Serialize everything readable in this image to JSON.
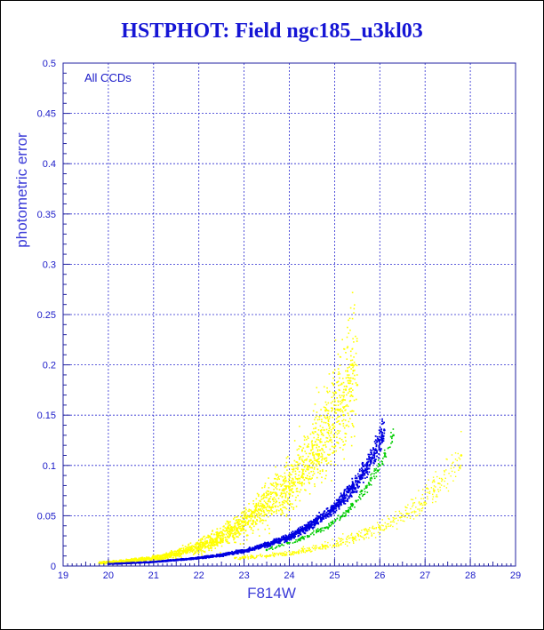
{
  "chart_data": {
    "type": "scatter",
    "title": "HSTPHOT: Field ngc185_u3kl03",
    "xlabel": "F814W",
    "ylabel": "photometric error",
    "annotation": "All CCDs",
    "xlim": [
      19,
      29
    ],
    "ylim": [
      0,
      0.5
    ],
    "x_ticks": [
      "19",
      "20",
      "21",
      "22",
      "23",
      "24",
      "25",
      "26",
      "27",
      "28",
      "29"
    ],
    "y_ticks": [
      "0",
      "0.05",
      "0.1",
      "0.15",
      "0.2",
      "0.25",
      "0.3",
      "0.35",
      "0.4",
      "0.45",
      "0.5"
    ],
    "grid": true,
    "colors": {
      "axis": "#2020a0",
      "grid": "#2a2ad0",
      "label": "#1a1ac8"
    },
    "series": [
      {
        "color": "#ffff00",
        "x": [
          19.8,
          20.3,
          20.8,
          21.2,
          21.6,
          22.0,
          22.4,
          22.8,
          23.2,
          23.6,
          24.0,
          24.3,
          24.6,
          24.9,
          25.2,
          25.5
        ],
        "y": [
          0.003,
          0.004,
          0.006,
          0.008,
          0.012,
          0.017,
          0.024,
          0.033,
          0.045,
          0.058,
          0.072,
          0.088,
          0.105,
          0.125,
          0.15,
          0.18
        ]
      },
      {
        "color": "#ffff00",
        "x": [
          22.8,
          23.5,
          24.2,
          24.8,
          25.4,
          26.0,
          26.6,
          27.2,
          27.8
        ],
        "y": [
          0.008,
          0.01,
          0.014,
          0.02,
          0.028,
          0.038,
          0.052,
          0.075,
          0.11
        ]
      },
      {
        "color": "#0000e0",
        "x": [
          20.0,
          21.0,
          22.0,
          22.5,
          23.0,
          23.5,
          24.0,
          24.5,
          25.0,
          25.4,
          25.8,
          26.1
        ],
        "y": [
          0.002,
          0.004,
          0.008,
          0.011,
          0.015,
          0.021,
          0.029,
          0.041,
          0.058,
          0.078,
          0.105,
          0.135
        ]
      },
      {
        "color": "#00cc00",
        "x": [
          23.5,
          24.2,
          24.8,
          25.3,
          25.7,
          26.0,
          26.3
        ],
        "y": [
          0.016,
          0.026,
          0.038,
          0.055,
          0.078,
          0.1,
          0.13
        ]
      }
    ]
  }
}
